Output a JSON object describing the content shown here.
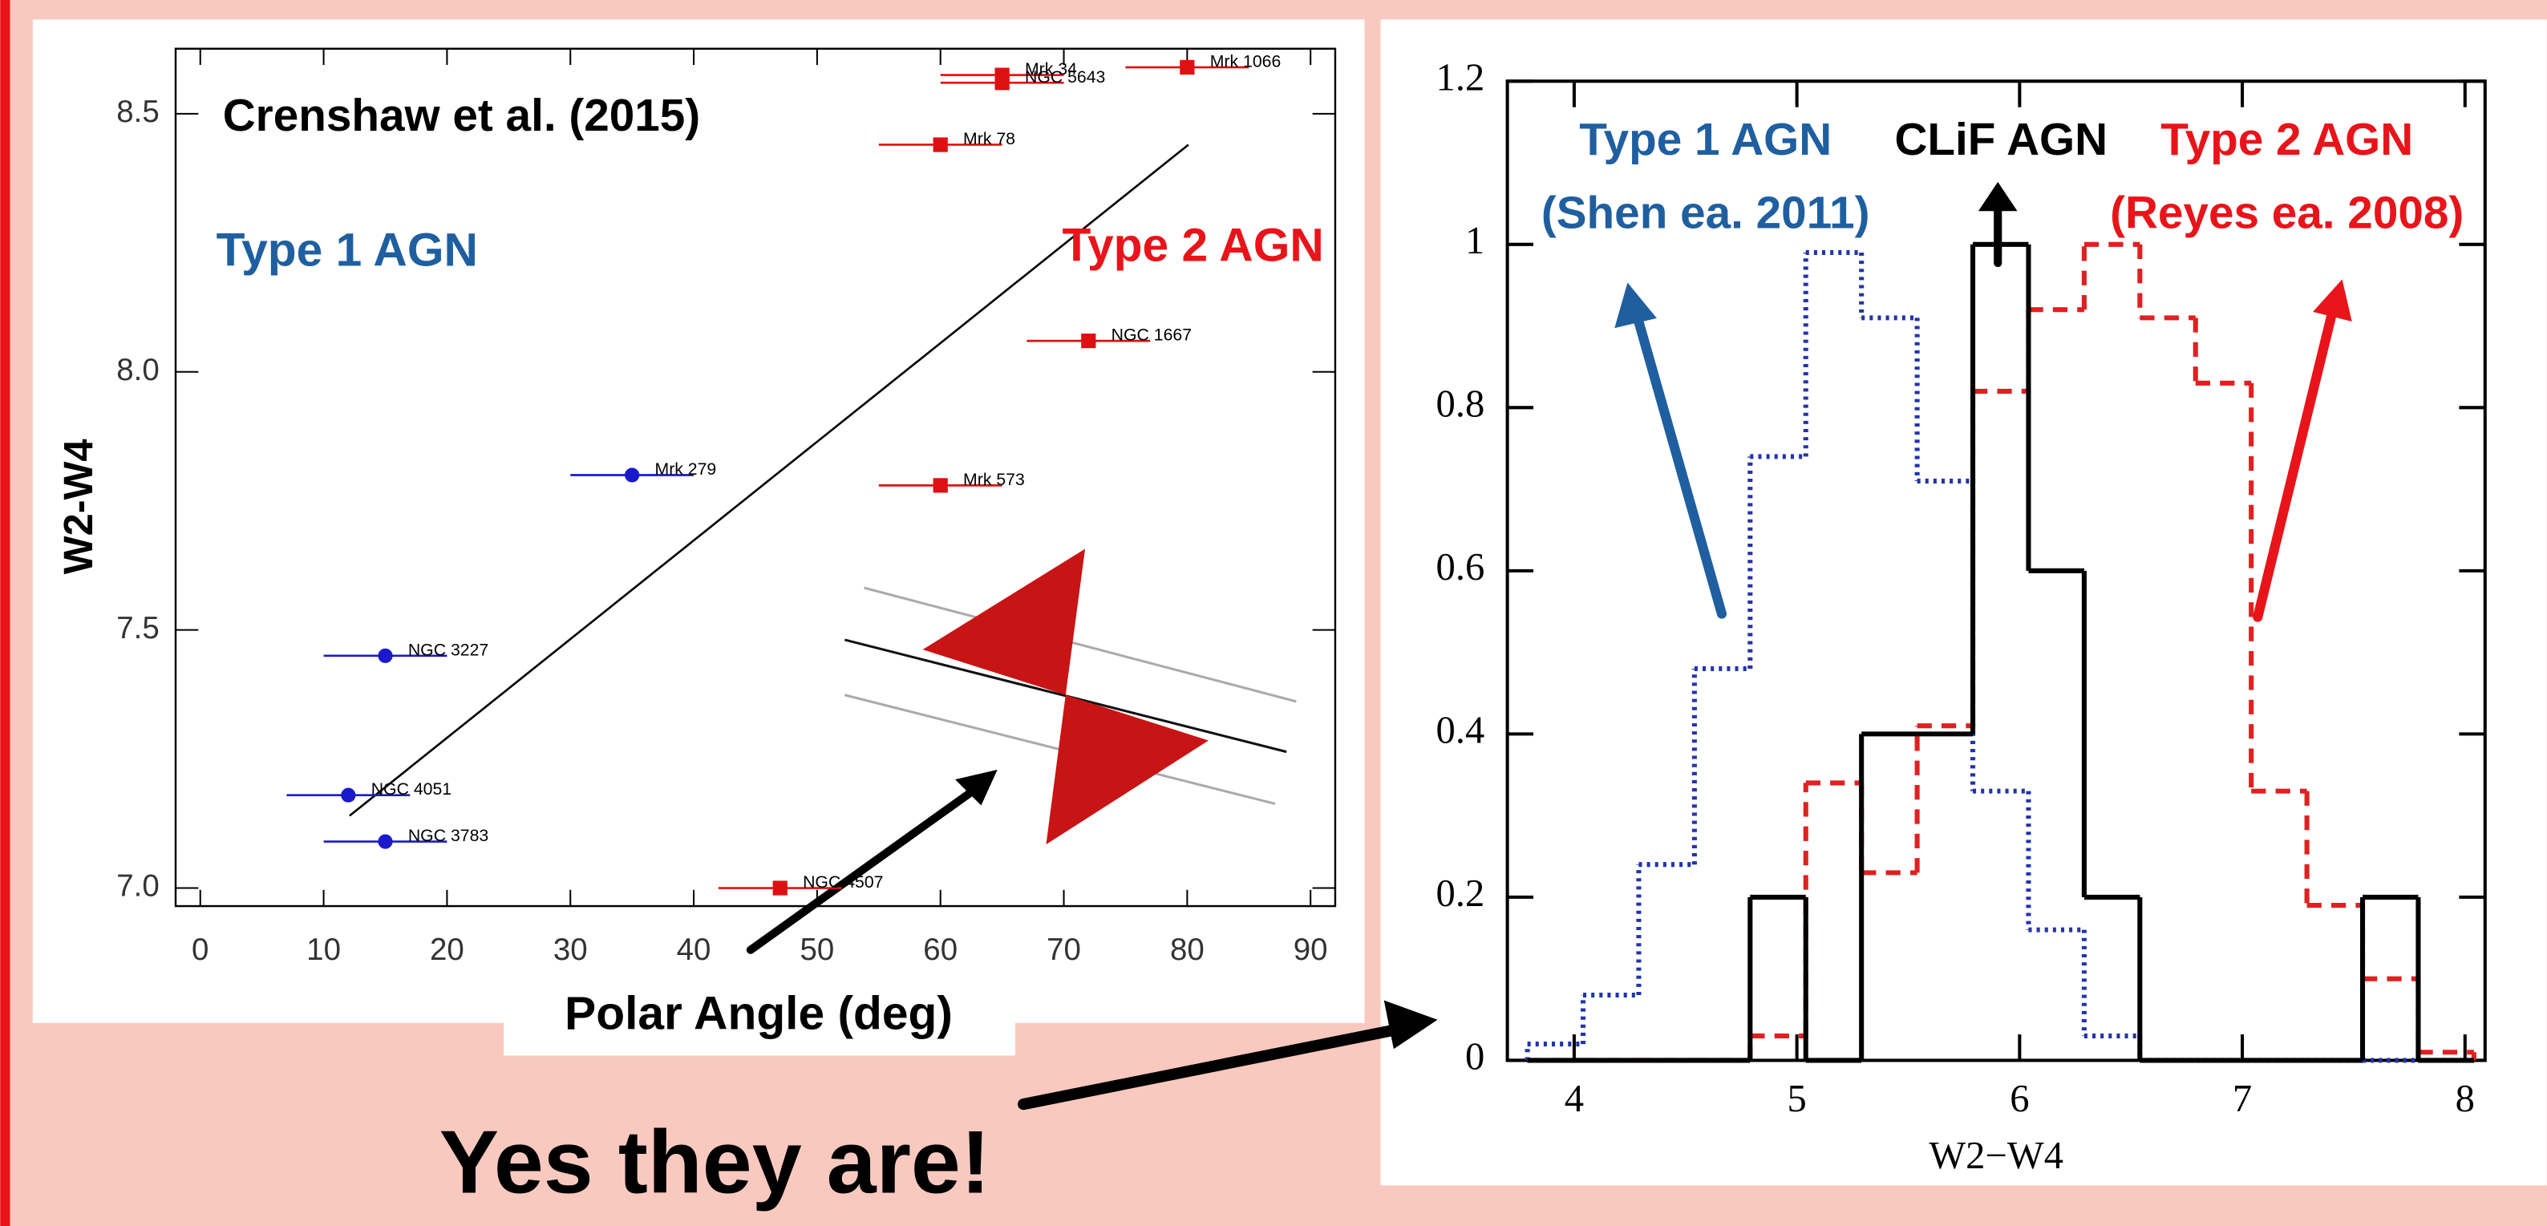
{
  "chart_data": [
    {
      "type": "scatter",
      "xlabel": "Polar Angle (deg)",
      "ylabel": "W2-W4",
      "annotations": [
        {
          "text": "Crenshaw et al. (2015)",
          "color": "#000000"
        },
        {
          "text": "Type 1 AGN",
          "color": "#1f5fa0"
        },
        {
          "text": "Type 2 AGN",
          "color": "#e8141a"
        }
      ],
      "xlim": [
        -2,
        92
      ],
      "xticks": [
        0,
        10,
        20,
        30,
        40,
        50,
        60,
        70,
        80,
        90
      ],
      "ylim": [
        6.965,
        8.626
      ],
      "yticks": [
        {
          "value": 7,
          "label": "7.0"
        },
        {
          "value": 7.5,
          "label": "7.5"
        },
        {
          "value": 8,
          "label": "8.0"
        },
        {
          "value": 8.5,
          "label": "8.5"
        }
      ],
      "series": [
        {
          "color": "#1a1acc",
          "marker": "circle",
          "labels": [
            "Mrk 279",
            "NGC 3227",
            "NGC 4051",
            "NGC 3783"
          ],
          "x": [
            35,
            15,
            12,
            15
          ],
          "y": [
            7.8,
            7.45,
            7.18,
            7.09
          ],
          "xerr": [
            5,
            5,
            5,
            5
          ]
        },
        {
          "color": "#dd1111",
          "marker": "square",
          "labels": [
            "Mrk 1066",
            "Mrk 34",
            "NGC 5643",
            "Mrk 78",
            "NGC 1667",
            "Mrk 573",
            "NGC 4507"
          ],
          "x": [
            80,
            65,
            65,
            60,
            72,
            60,
            47
          ],
          "y": [
            8.59,
            8.575,
            8.56,
            8.44,
            8.06,
            7.78,
            7.0
          ],
          "xerr": [
            5,
            5,
            5,
            5,
            5,
            5,
            5
          ]
        }
      ],
      "fit_line": {
        "x": [
          12.1,
          80.1
        ],
        "y": [
          7.14,
          8.44
        ]
      }
    },
    {
      "type": "histogram",
      "xlabel": "W2−W4",
      "annotations": [
        {
          "text": "Type 1 AGN",
          "color": "#1f5fa0"
        },
        {
          "text": "(Shen ea. 2011)",
          "color": "#1f5fa0"
        },
        {
          "text": "CLiF AGN",
          "color": "#000000"
        },
        {
          "text": "Type 2 AGN",
          "color": "#e8141a"
        },
        {
          "text": "(Reyes ea. 2008)",
          "color": "#e8141a"
        }
      ],
      "xlim": [
        3.7,
        8.09
      ],
      "xticks": [
        4,
        5,
        6,
        7,
        8
      ],
      "ylim": [
        0,
        1.2
      ],
      "yticks": [
        0,
        0.2,
        0.4,
        0.6,
        0.8,
        1,
        1.2
      ],
      "bins": [
        3.79,
        4.04,
        4.29,
        4.54,
        4.79,
        5.04,
        5.29,
        5.54,
        5.79,
        6.04,
        6.29,
        6.54,
        6.79,
        7.04,
        7.29,
        7.54,
        7.79,
        8.04
      ],
      "series": [
        {
          "color": "#2233aa",
          "style": "dotted",
          "values": [
            0.02,
            0.08,
            0.24,
            0.48,
            0.74,
            0.99,
            0.91,
            0.71,
            0.33,
            0.16,
            0.03,
            0,
            0,
            0,
            0,
            0,
            0
          ]
        },
        {
          "color": "#e02020",
          "style": "dashed",
          "values": [
            0,
            0,
            0,
            0,
            0.03,
            0.34,
            0.23,
            0.41,
            0.82,
            0.92,
            1.0,
            0.91,
            0.83,
            0.33,
            0.19,
            0.1,
            0.01
          ]
        },
        {
          "color": "#000000",
          "style": "solid",
          "values": [
            0,
            0,
            0,
            0,
            0.2,
            0,
            0.4,
            0.4,
            1.0,
            0.6,
            0.2,
            0,
            0,
            0,
            0,
            0.2,
            0
          ]
        }
      ]
    }
  ],
  "slide": {
    "caption": "Yes they are!"
  }
}
